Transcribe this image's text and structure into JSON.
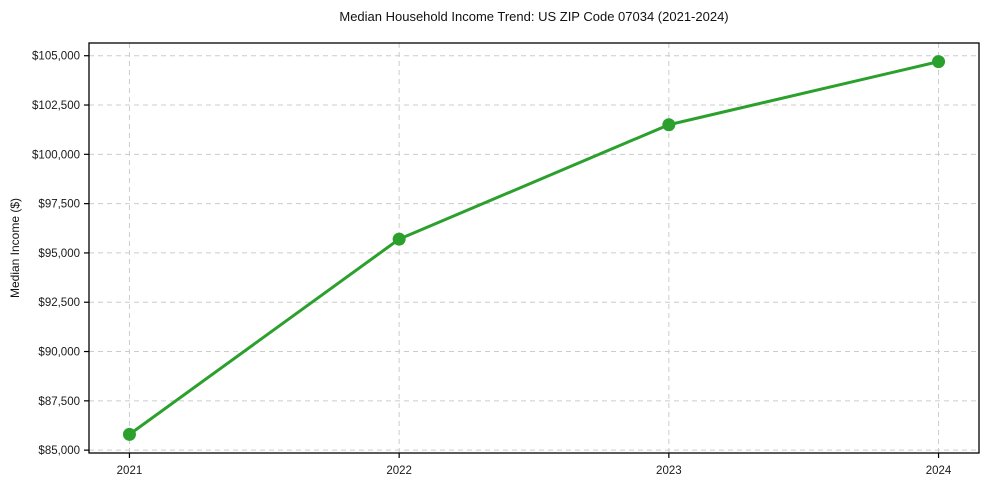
{
  "figure": {
    "background": "#ffffff"
  },
  "chart_data": {
    "type": "line",
    "title": "Median Household Income Trend: US ZIP Code 07034 (2021-2024)",
    "xlabel": "",
    "ylabel": "Median Income ($)",
    "categories": [
      2021,
      2022,
      2023,
      2024
    ],
    "x_tick_labels": [
      "2021",
      "2022",
      "2023",
      "2024"
    ],
    "series": [
      {
        "name": "Median Household Income",
        "values": [
          85800,
          95700,
          101500,
          104700
        ],
        "color": "#2ca02c",
        "marker": "circle",
        "line_width": 3
      }
    ],
    "yticks": [
      85000,
      87500,
      90000,
      92500,
      95000,
      97500,
      100000,
      102500,
      105000
    ],
    "y_tick_labels": [
      "$85,000",
      "$87,500",
      "$90,000",
      "$92,500",
      "$95,000",
      "$97,500",
      "$100,000",
      "$102,500",
      "$105,000"
    ],
    "xlim": [
      2020.85,
      2024.15
    ],
    "ylim": [
      84855,
      105645
    ],
    "grid": true,
    "grid_style": "dashed",
    "grid_color": "#cccccc",
    "axis_color": "#000000",
    "tick_label_color": "#1a1a1a",
    "legend_position": "none"
  }
}
